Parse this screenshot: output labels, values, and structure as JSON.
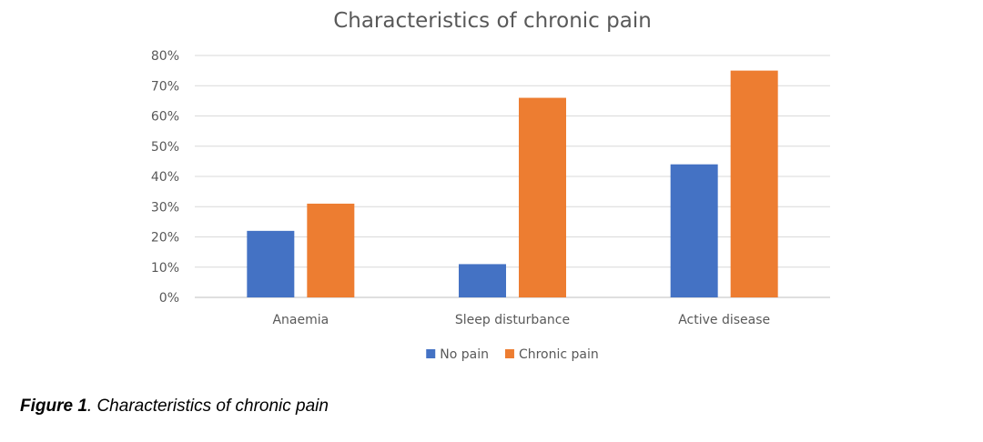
{
  "chart_data": {
    "type": "bar",
    "title": "Characteristics of chronic pain",
    "categories": [
      "Anaemia",
      "Sleep disturbance",
      "Active disease"
    ],
    "series": [
      {
        "name": "No pain",
        "values": [
          22,
          11,
          44
        ],
        "color": "#4472c4"
      },
      {
        "name": "Chronic pain",
        "values": [
          31,
          66,
          75
        ],
        "color": "#ed7d31"
      }
    ],
    "yticks": [
      "0%",
      "10%",
      "20%",
      "30%",
      "40%",
      "50%",
      "60%",
      "70%",
      "80%"
    ],
    "ylim": [
      0,
      80
    ],
    "grid": true,
    "legend": "bottom"
  },
  "caption": {
    "label": "Figure 1",
    "text": ". Characteristics of chronic pain"
  }
}
